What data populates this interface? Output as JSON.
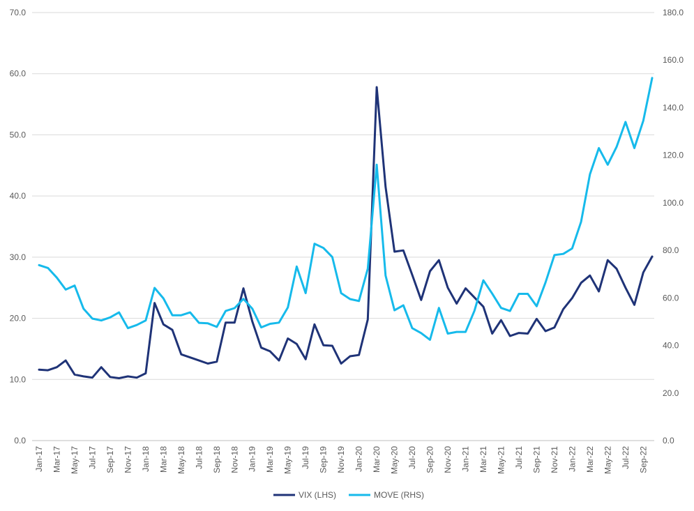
{
  "chart_data": {
    "type": "line",
    "title": "",
    "xlabel": "",
    "ylabel": "",
    "x": [
      "Jan-17",
      "Feb-17",
      "Mar-17",
      "Apr-17",
      "May-17",
      "Jun-17",
      "Jul-17",
      "Aug-17",
      "Sep-17",
      "Oct-17",
      "Nov-17",
      "Dec-17",
      "Jan-18",
      "Feb-18",
      "Mar-18",
      "Apr-18",
      "May-18",
      "Jun-18",
      "Jul-18",
      "Aug-18",
      "Sep-18",
      "Oct-18",
      "Nov-18",
      "Dec-18",
      "Jan-19",
      "Feb-19",
      "Mar-19",
      "Apr-19",
      "May-19",
      "Jun-19",
      "Jul-19",
      "Aug-19",
      "Sep-19",
      "Oct-19",
      "Nov-19",
      "Dec-19",
      "Jan-20",
      "Feb-20",
      "Mar-20",
      "Apr-20",
      "May-20",
      "Jun-20",
      "Jul-20",
      "Aug-20",
      "Sep-20",
      "Oct-20",
      "Nov-20",
      "Dec-20",
      "Jan-21",
      "Feb-21",
      "Mar-21",
      "Apr-21",
      "May-21",
      "Jun-21",
      "Jul-21",
      "Aug-21",
      "Sep-21",
      "Oct-21",
      "Nov-21",
      "Dec-21",
      "Jan-22",
      "Feb-22",
      "Mar-22",
      "Apr-22",
      "May-22",
      "Jun-22",
      "Jul-22",
      "Aug-22",
      "Sep-22",
      "Oct-22"
    ],
    "x_tick_labels": [
      "Jan-17",
      "Mar-17",
      "May-17",
      "Jul-17",
      "Sep-17",
      "Nov-17",
      "Jan-18",
      "Mar-18",
      "May-18",
      "Jul-18",
      "Sep-18",
      "Nov-18",
      "Jan-19",
      "Mar-19",
      "May-19",
      "Jul-19",
      "Sep-19",
      "Nov-19",
      "Jan-20",
      "Mar-20",
      "May-20",
      "Jul-20",
      "Sep-20",
      "Nov-20",
      "Jan-21",
      "Mar-21",
      "May-21",
      "Jul-21",
      "Sep-21",
      "Nov-21",
      "Jan-22",
      "Mar-22",
      "May-22",
      "Jul-22",
      "Sep-22"
    ],
    "y_left": {
      "ylim": [
        0,
        70
      ],
      "ticks": [
        "0.0",
        "10.0",
        "20.0",
        "30.0",
        "40.0",
        "50.0",
        "60.0",
        "70.0"
      ]
    },
    "y_right": {
      "ylim": [
        0,
        180
      ],
      "ticks": [
        "0.0",
        "20.0",
        "40.0",
        "60.0",
        "80.0",
        "100.0",
        "120.0",
        "140.0",
        "160.0",
        "180.0"
      ]
    },
    "grid": true,
    "legend_position": "bottom",
    "series": [
      {
        "name": "VIX (LHS)",
        "axis": "left",
        "color": "#1f3377",
        "values": [
          11.6,
          11.5,
          12.0,
          13.1,
          10.8,
          10.5,
          10.3,
          12.0,
          10.4,
          10.2,
          10.5,
          10.3,
          11.0,
          22.5,
          19.0,
          18.1,
          14.1,
          13.6,
          13.1,
          12.6,
          12.9,
          19.3,
          19.3,
          24.9,
          19.5,
          15.2,
          14.6,
          13.1,
          16.7,
          15.8,
          13.3,
          19.0,
          15.6,
          15.5,
          12.6,
          13.8,
          14.0,
          19.8,
          57.8,
          41.5,
          30.9,
          31.1,
          27.1,
          23.0,
          27.7,
          29.5,
          25.0,
          22.4,
          24.9,
          23.4,
          21.9,
          17.5,
          19.7,
          17.1,
          17.6,
          17.5,
          19.9,
          17.9,
          18.5,
          21.5,
          23.3,
          25.8,
          27.0,
          24.4,
          29.5,
          28.1,
          25.0,
          22.2,
          27.5,
          30.1
        ]
      },
      {
        "name": "MOVE (RHS)",
        "axis": "right",
        "color": "#16baeb",
        "values": [
          73.8,
          72.6,
          68.5,
          63.5,
          65.2,
          55.5,
          51.3,
          50.5,
          51.8,
          53.9,
          47.3,
          48.6,
          50.5,
          64.2,
          59.8,
          52.7,
          52.7,
          53.9,
          49.5,
          49.3,
          47.8,
          54.5,
          55.7,
          59.6,
          55.5,
          47.6,
          49.1,
          49.6,
          56.0,
          73.2,
          62.0,
          82.8,
          81.0,
          77.2,
          62.0,
          59.5,
          58.7,
          72.3,
          116.0,
          69.4,
          54.8,
          56.9,
          47.3,
          45.2,
          42.4,
          55.8,
          45.0,
          45.7,
          45.7,
          54.6,
          67.4,
          61.8,
          55.8,
          54.5,
          61.7,
          61.7,
          56.5,
          66.5,
          78.0,
          78.5,
          80.8,
          92.0,
          112.0,
          123.0,
          116.0,
          123.5,
          134.0,
          123.0,
          134.5,
          152.5
        ]
      }
    ]
  }
}
